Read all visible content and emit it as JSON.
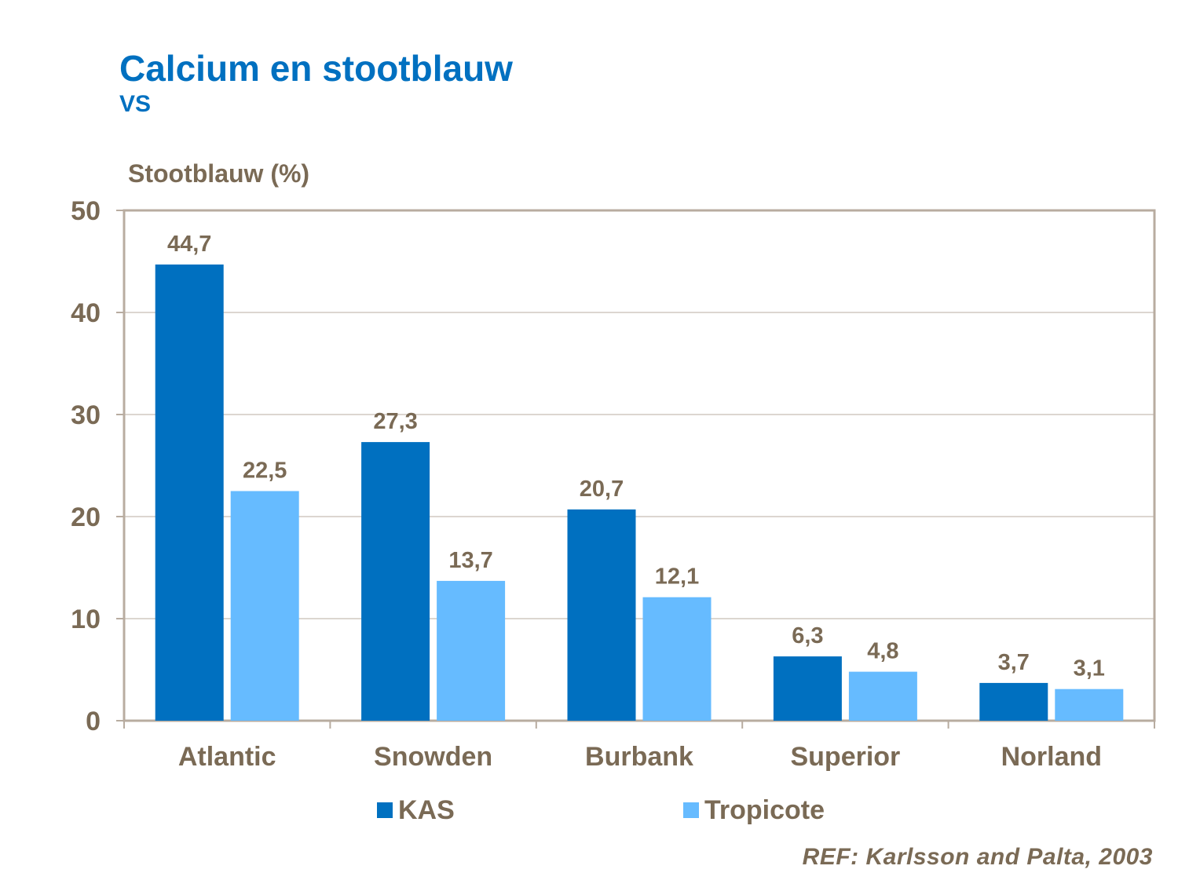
{
  "chart_data": {
    "type": "bar",
    "title": "Calcium en stootblauw",
    "subtitle": "VS",
    "ylabel": "Stootblauw (%)",
    "xlabel": "",
    "ylim": [
      0,
      50
    ],
    "yticks": [
      0,
      10,
      20,
      30,
      40,
      50
    ],
    "grid": true,
    "legend_position": "bottom",
    "categories": [
      "Atlantic",
      "Snowden",
      "Burbank",
      "Superior",
      "Norland"
    ],
    "series": [
      {
        "name": "KAS",
        "color": "#0070c0",
        "values": [
          44.7,
          27.3,
          20.7,
          6.3,
          3.7
        ],
        "labels": [
          "44,7",
          "27,3",
          "20,7",
          "6,3",
          "3,7"
        ]
      },
      {
        "name": "Tropicote",
        "color": "#66bbff",
        "values": [
          22.5,
          13.7,
          12.1,
          4.8,
          3.1
        ],
        "labels": [
          "22,5",
          "13,7",
          "12,1",
          "4,8",
          "3,1"
        ]
      }
    ],
    "annotation": "REF: Karlsson and Palta, 2003"
  }
}
